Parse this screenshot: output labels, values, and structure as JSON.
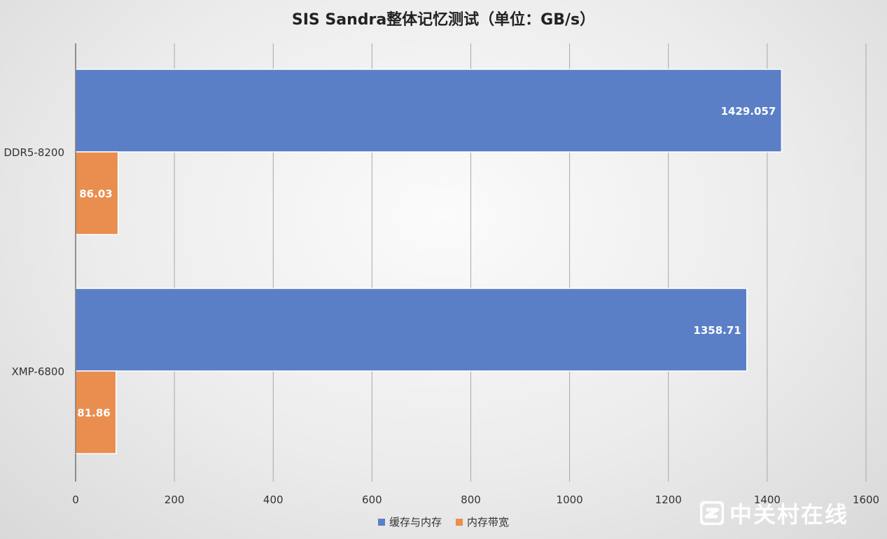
{
  "chart_data": {
    "type": "bar",
    "orientation": "horizontal",
    "title": "SIS Sandra整体记忆测试（单位：GB/s）",
    "categories": [
      "DDR5-8200",
      "XMP-6800"
    ],
    "series": [
      {
        "name": "缓存与内存",
        "color": "#5b7fc7",
        "values": [
          1429.057,
          1358.71
        ],
        "labels": [
          "1429.057",
          "1358.71"
        ]
      },
      {
        "name": "内存带宽",
        "color": "#e98e4e",
        "values": [
          86.03,
          81.86
        ],
        "labels": [
          "86.03",
          "81.86"
        ]
      }
    ],
    "xlim": [
      0,
      1600
    ],
    "x_ticks": [
      0,
      200,
      400,
      600,
      800,
      1000,
      1200,
      1400,
      1600
    ],
    "x_tick_labels": [
      "0",
      "200",
      "400",
      "600",
      "800",
      "1000",
      "1200",
      "1400",
      "1600"
    ],
    "grid": true,
    "legend_position": "bottom"
  },
  "watermark": {
    "text": "中关村在线",
    "icon": "zol-logo-icon"
  }
}
